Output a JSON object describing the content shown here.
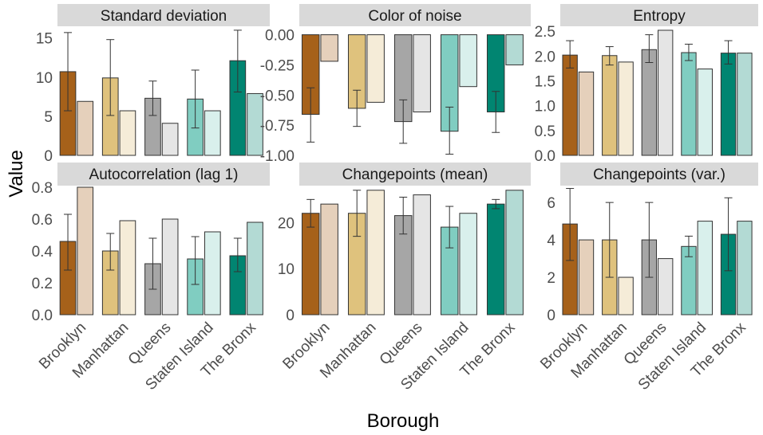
{
  "chart_data": {
    "type": "bar",
    "xlabel": "Borough",
    "ylabel": "Value",
    "categories": [
      "Brooklyn",
      "Manhattan",
      "Queens",
      "Staten Island",
      "The Bronx"
    ],
    "colors": {
      "dark": [
        "#a6611a",
        "#dfc27d",
        "#a6a6a6",
        "#80cdc1",
        "#018571"
      ],
      "light": [
        "#e5d0bb",
        "#f5ecd8",
        "#e5e5e5",
        "#d9f0ec",
        "#b3dad4"
      ]
    },
    "panels": [
      {
        "title": "Standard deviation",
        "ylim": [
          0,
          16.5
        ],
        "yticks": [
          0,
          5,
          10,
          15
        ],
        "ytick_labels": [
          "0",
          "5",
          "10",
          "15"
        ],
        "series": [
          {
            "values": [
              10.7,
              9.9,
              7.3,
              7.2,
              12.1
            ],
            "err_low": [
              5.7,
              5.1,
              5.1,
              3.5,
              8.1
            ],
            "err_high": [
              15.7,
              14.8,
              9.5,
              10.9,
              16.0
            ]
          },
          {
            "values": [
              6.9,
              5.7,
              4.1,
              5.7,
              7.9
            ]
          }
        ]
      },
      {
        "title": "Color of noise",
        "ylim": [
          -1.0,
          0.07
        ],
        "yticks": [
          -1.0,
          -0.75,
          -0.5,
          -0.25,
          0.0
        ],
        "ytick_labels": [
          "-1.00",
          "-0.75",
          "-0.50",
          "-0.25",
          "0.00"
        ],
        "series": [
          {
            "values": [
              -0.66,
              -0.61,
              -0.72,
              -0.8,
              -0.64
            ],
            "err_low": [
              -0.89,
              -0.76,
              -0.9,
              -0.99,
              -0.81
            ],
            "err_high": [
              -0.44,
              -0.46,
              -0.54,
              -0.6,
              -0.47
            ]
          },
          {
            "values": [
              -0.22,
              -0.56,
              -0.64,
              -0.43,
              -0.25
            ]
          }
        ]
      },
      {
        "title": "Entropy",
        "ylim": [
          0,
          2.6
        ],
        "yticks": [
          0,
          0.5,
          1.0,
          1.5,
          2.0,
          2.5
        ],
        "ytick_labels": [
          "0.0",
          "0.5",
          "1.0",
          "1.5",
          "2.0",
          "2.5"
        ],
        "series": [
          {
            "values": [
              2.02,
              2.01,
              2.13,
              2.07,
              2.06
            ],
            "err_low": [
              1.76,
              1.82,
              1.87,
              1.91,
              1.84
            ],
            "err_high": [
              2.31,
              2.19,
              2.43,
              2.24,
              2.31
            ]
          },
          {
            "values": [
              1.68,
              1.88,
              2.52,
              1.74,
              2.06
            ]
          }
        ]
      },
      {
        "title": "Autocorrelation (lag 1)",
        "ylim": [
          0,
          0.81
        ],
        "yticks": [
          0,
          0.2,
          0.4,
          0.6,
          0.8
        ],
        "ytick_labels": [
          "0.0",
          "0.2",
          "0.4",
          "0.6",
          "0.8"
        ],
        "series": [
          {
            "values": [
              0.46,
              0.4,
              0.32,
              0.35,
              0.37
            ],
            "err_low": [
              0.28,
              0.28,
              0.16,
              0.19,
              0.27
            ],
            "err_high": [
              0.63,
              0.51,
              0.48,
              0.49,
              0.48
            ]
          },
          {
            "values": [
              0.8,
              0.59,
              0.6,
              0.52,
              0.58
            ]
          }
        ]
      },
      {
        "title": "Changepoints (mean)",
        "ylim": [
          0,
          28
        ],
        "yticks": [
          0,
          10,
          20
        ],
        "ytick_labels": [
          "0",
          "10",
          "20"
        ],
        "series": [
          {
            "values": [
              22.0,
              22.0,
              21.5,
              19.0,
              24.0
            ],
            "err_low": [
              19.0,
              17.0,
              17.5,
              14.5,
              23.0
            ],
            "err_high": [
              25.0,
              27.0,
              25.5,
              23.5,
              25.0
            ]
          },
          {
            "values": [
              24.0,
              27.0,
              26.0,
              22.0,
              27.0
            ]
          }
        ]
      },
      {
        "title": "Changepoints (var.)",
        "ylim": [
          0,
          6.9
        ],
        "yticks": [
          0,
          2,
          4,
          6
        ],
        "ytick_labels": [
          "0",
          "2",
          "4",
          "6"
        ],
        "series": [
          {
            "values": [
              4.85,
              4.0,
              4.0,
              3.65,
              4.3
            ],
            "err_low": [
              2.9,
              2.0,
              2.0,
              3.1,
              2.35
            ],
            "err_high": [
              6.75,
              6.0,
              6.0,
              4.2,
              6.25
            ]
          },
          {
            "values": [
              4.0,
              2.0,
              3.0,
              5.0,
              5.0
            ]
          }
        ]
      }
    ]
  }
}
